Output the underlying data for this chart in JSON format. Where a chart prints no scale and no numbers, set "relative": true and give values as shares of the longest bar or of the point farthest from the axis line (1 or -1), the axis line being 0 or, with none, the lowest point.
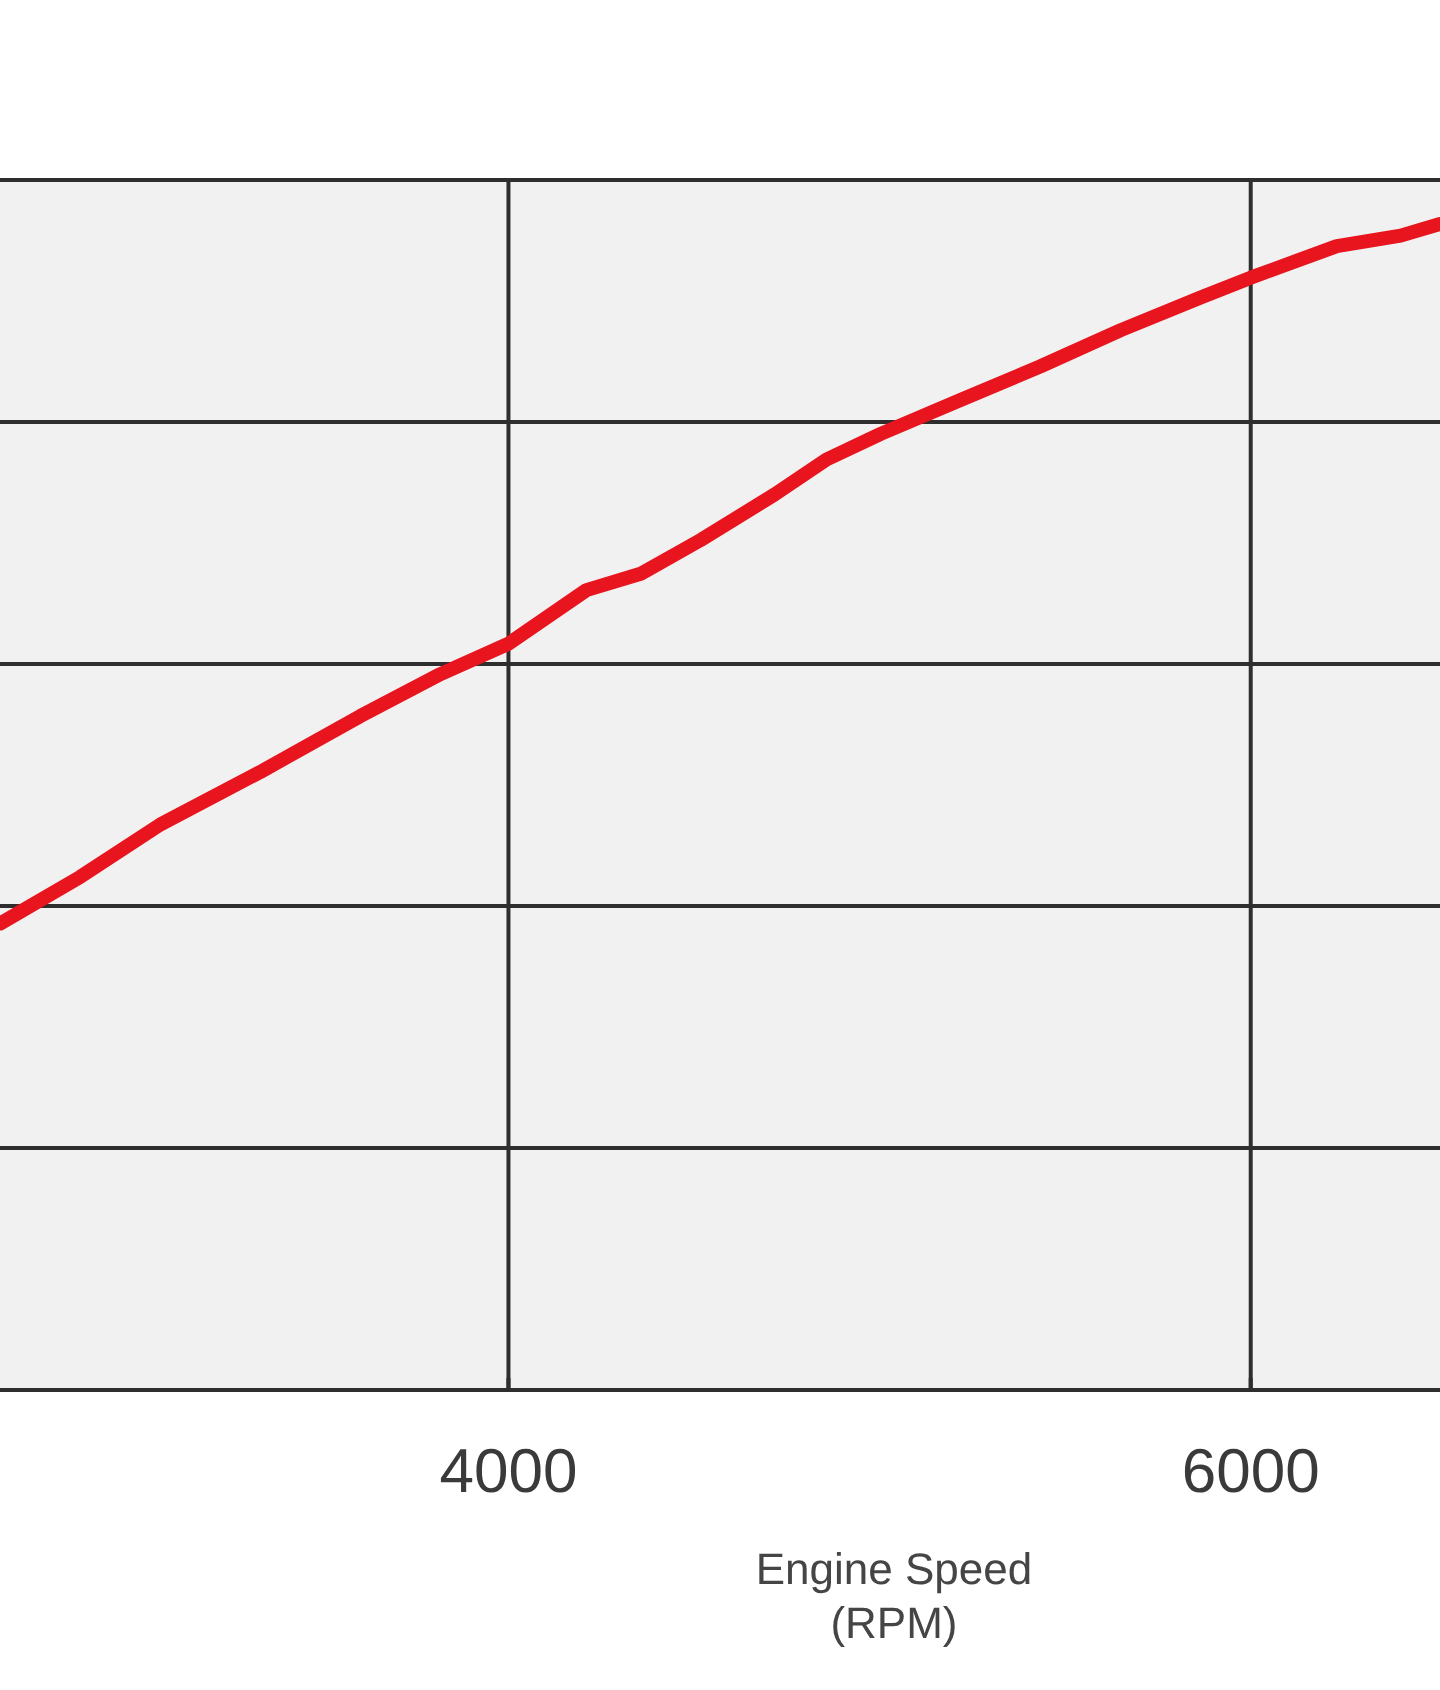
{
  "chart_data": {
    "type": "line",
    "xlabel": "Engine Speed\n(RPM)",
    "relative": true,
    "xlim": [
      2630,
      6510
    ],
    "xticks": [
      4000,
      6000
    ],
    "grid": true,
    "tick_labels": "x",
    "series": [
      {
        "color": "#e8141e",
        "x": [
          2630,
          2846,
          3062,
          3331,
          3601,
          3817,
          4000,
          4210,
          4356,
          4518,
          4717,
          4857,
          5003,
          5218,
          5434,
          5650,
          5865,
          6000,
          6232,
          6404,
          6510
        ],
        "values": [
          0.4,
          0.44,
          0.485,
          0.53,
          0.578,
          0.614,
          0.64,
          0.686,
          0.7,
          0.729,
          0.768,
          0.798,
          0.82,
          0.849,
          0.878,
          0.909,
          0.937,
          0.954,
          0.981,
          0.99,
          1
        ]
      }
    ]
  }
}
